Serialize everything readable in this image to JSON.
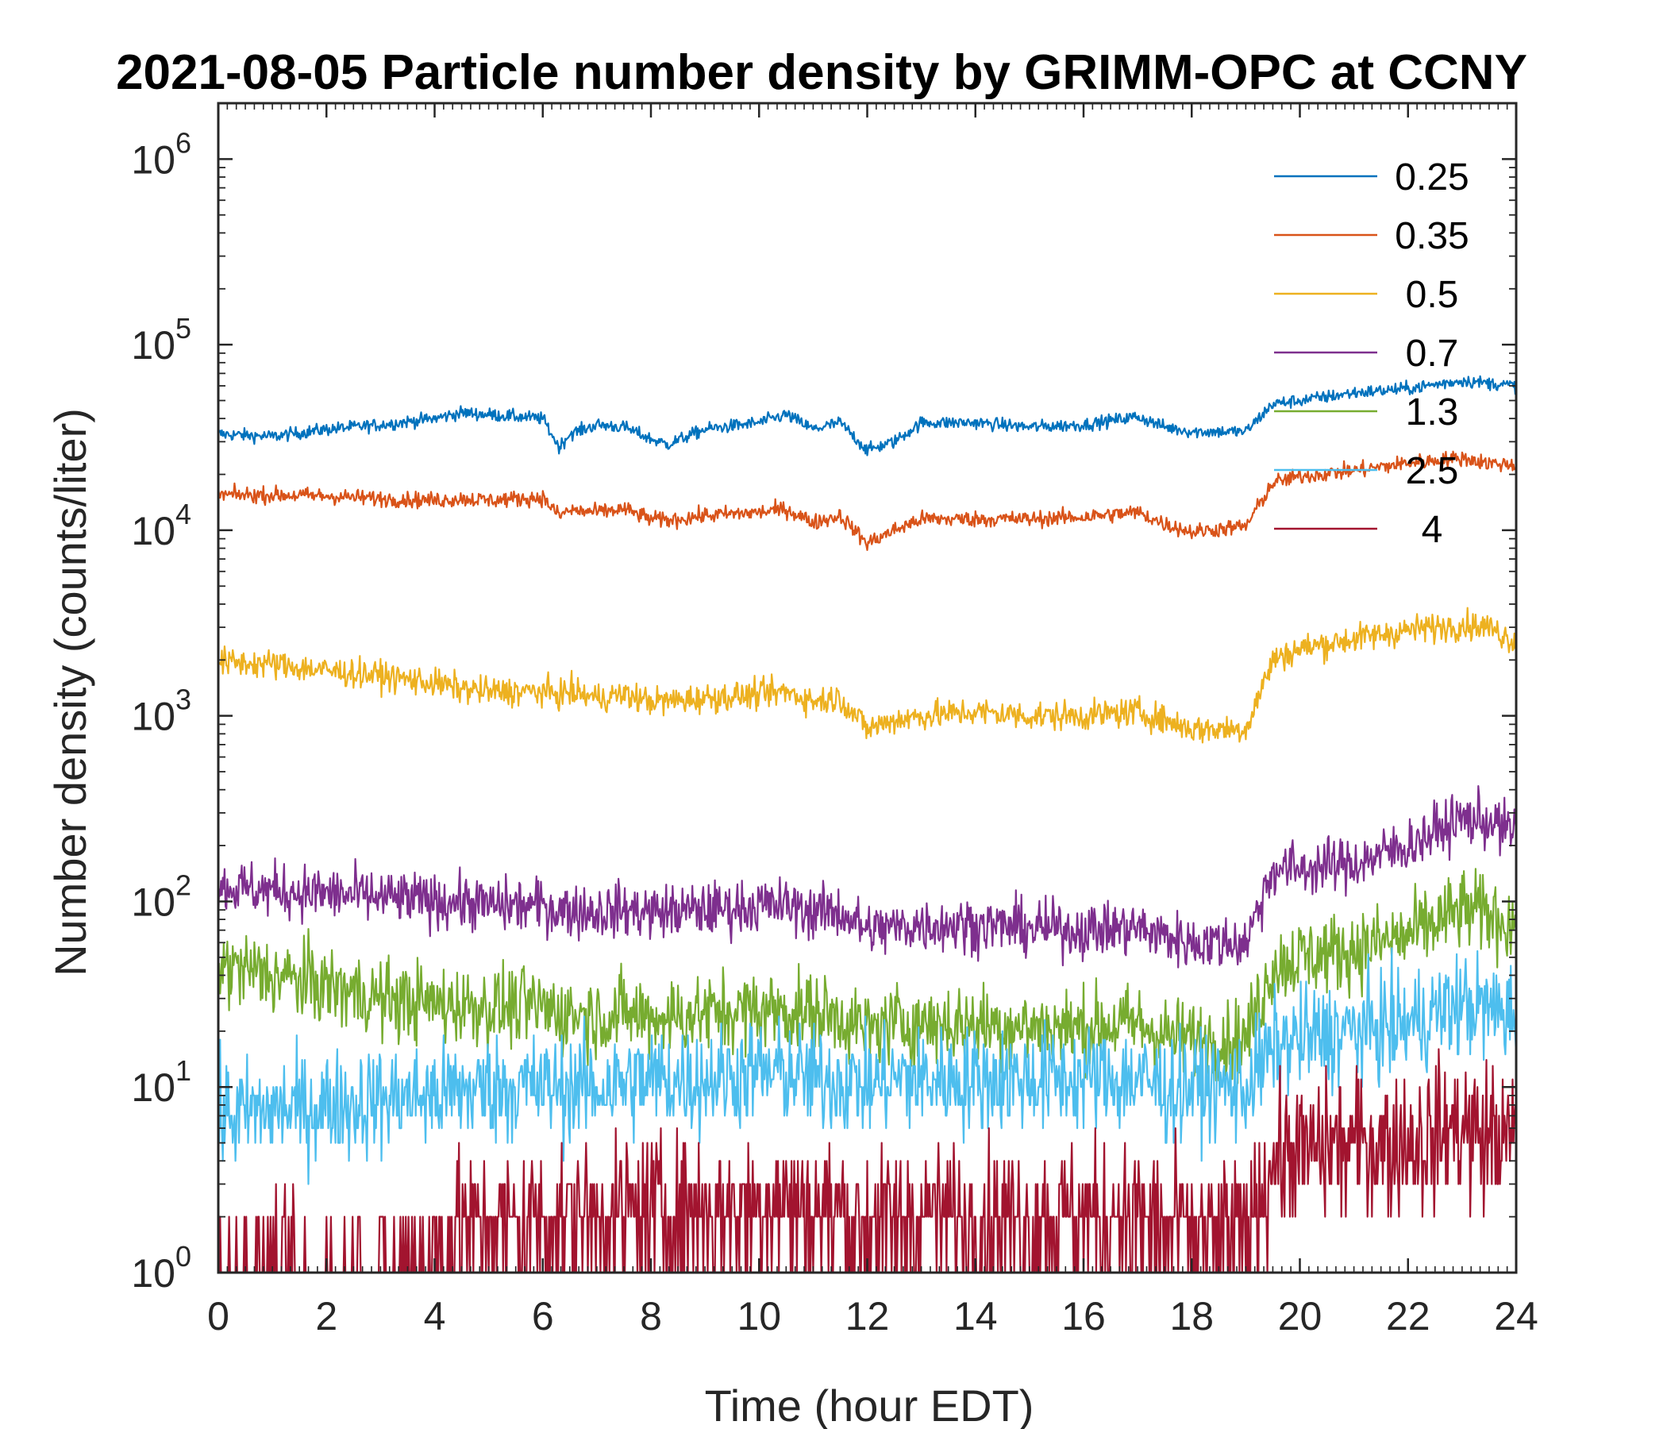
{
  "chart_data": {
    "type": "line",
    "title": "2021-08-05 Particle number density by GRIMM-OPC at CCNY",
    "xlabel": "Time (hour EDT)",
    "ylabel": "Number density (counts/liter)",
    "yscale": "log",
    "xlim": [
      0,
      24
    ],
    "ylim": [
      1,
      2000000
    ],
    "xticks": [
      "0",
      "2",
      "4",
      "6",
      "8",
      "10",
      "12",
      "14",
      "16",
      "18",
      "20",
      "22",
      "24"
    ],
    "yticks": [
      {
        "base": "10",
        "exp": "0"
      },
      {
        "base": "10",
        "exp": "1"
      },
      {
        "base": "10",
        "exp": "2"
      },
      {
        "base": "10",
        "exp": "3"
      },
      {
        "base": "10",
        "exp": "4"
      },
      {
        "base": "10",
        "exp": "5"
      },
      {
        "base": "10",
        "exp": "6"
      }
    ],
    "legend_position": "top-right",
    "x": [
      0,
      1,
      2,
      3,
      4,
      4.5,
      5,
      6,
      6.3,
      6.5,
      7,
      7.5,
      8,
      8.3,
      9,
      10,
      10.5,
      11,
      11.5,
      12,
      12.5,
      13,
      14,
      15,
      16,
      17,
      17.5,
      18,
      19,
      19.5,
      20,
      21,
      22,
      23,
      23.5,
      24
    ],
    "series": [
      {
        "name": "0.25",
        "color": "#0072BD",
        "noise": 0.04,
        "values": [
          33000,
          32000,
          35000,
          37000,
          40000,
          43000,
          42000,
          40000,
          28000,
          33000,
          37000,
          36000,
          31000,
          29000,
          35000,
          38000,
          42000,
          35000,
          38000,
          27000,
          30000,
          38000,
          38000,
          36000,
          37000,
          41000,
          36000,
          34000,
          34000,
          48000,
          50000,
          55000,
          58000,
          64000,
          62000,
          60000
        ]
      },
      {
        "name": "0.35",
        "color": "#D95319",
        "noise": 0.05,
        "values": [
          15500,
          15500,
          15300,
          14800,
          14500,
          14800,
          14500,
          15000,
          12000,
          12800,
          12500,
          13000,
          11500,
          11300,
          12000,
          12500,
          13000,
          11000,
          12000,
          8500,
          10000,
          11500,
          11500,
          11500,
          11800,
          12500,
          10800,
          9800,
          10500,
          18000,
          19500,
          21000,
          23000,
          24500,
          23000,
          22500
        ]
      },
      {
        "name": "0.5",
        "color": "#EDB120",
        "noise": 0.09,
        "values": [
          1950,
          1900,
          1750,
          1650,
          1500,
          1400,
          1350,
          1350,
          1300,
          1350,
          1250,
          1300,
          1200,
          1200,
          1250,
          1300,
          1350,
          1200,
          1250,
          850,
          950,
          1000,
          1050,
          1000,
          1000,
          1050,
          950,
          850,
          850,
          2000,
          2300,
          2600,
          2900,
          3100,
          3000,
          2500
        ]
      },
      {
        "name": "0.7",
        "color": "#7E2F8E",
        "noise": 0.17,
        "values": [
          120,
          115,
          110,
          105,
          100,
          100,
          95,
          95,
          90,
          90,
          88,
          90,
          88,
          88,
          90,
          95,
          95,
          88,
          88,
          70,
          72,
          75,
          75,
          72,
          70,
          72,
          65,
          60,
          60,
          150,
          150,
          160,
          200,
          280,
          270,
          230
        ]
      },
      {
        "name": "1.3",
        "color": "#77AC30",
        "noise": 0.25,
        "values": [
          45,
          40,
          35,
          30,
          28,
          28,
          27,
          27,
          25,
          25,
          24,
          25,
          24,
          24,
          25,
          26,
          26,
          25,
          24,
          20,
          22,
          22,
          22,
          21,
          21,
          22,
          19,
          18,
          18,
          45,
          50,
          55,
          65,
          90,
          85,
          75
        ]
      },
      {
        "name": "2.5",
        "color": "#4DBEEE",
        "noise": 0.33,
        "values": [
          7,
          7.5,
          8,
          8.5,
          9,
          9.5,
          10,
          10,
          10,
          10,
          10,
          10.5,
          11,
          11,
          11,
          12,
          12,
          11,
          11,
          10,
          11,
          11,
          11,
          11,
          11,
          11,
          10,
          10,
          10,
          16,
          18,
          20,
          22,
          28,
          26,
          25
        ]
      },
      {
        "name": "4",
        "color": "#A2142F",
        "noise": 0.45,
        "values": [
          1,
          1,
          1,
          1,
          1.3,
          1.8,
          2,
          2,
          2,
          2,
          2,
          2,
          2.2,
          2.2,
          2.2,
          2.4,
          2.4,
          2.2,
          2.2,
          1.8,
          2,
          2,
          2,
          2,
          2,
          2,
          1.8,
          1.6,
          1.6,
          4,
          4.5,
          5,
          5,
          6,
          5.5,
          5
        ]
      }
    ]
  }
}
